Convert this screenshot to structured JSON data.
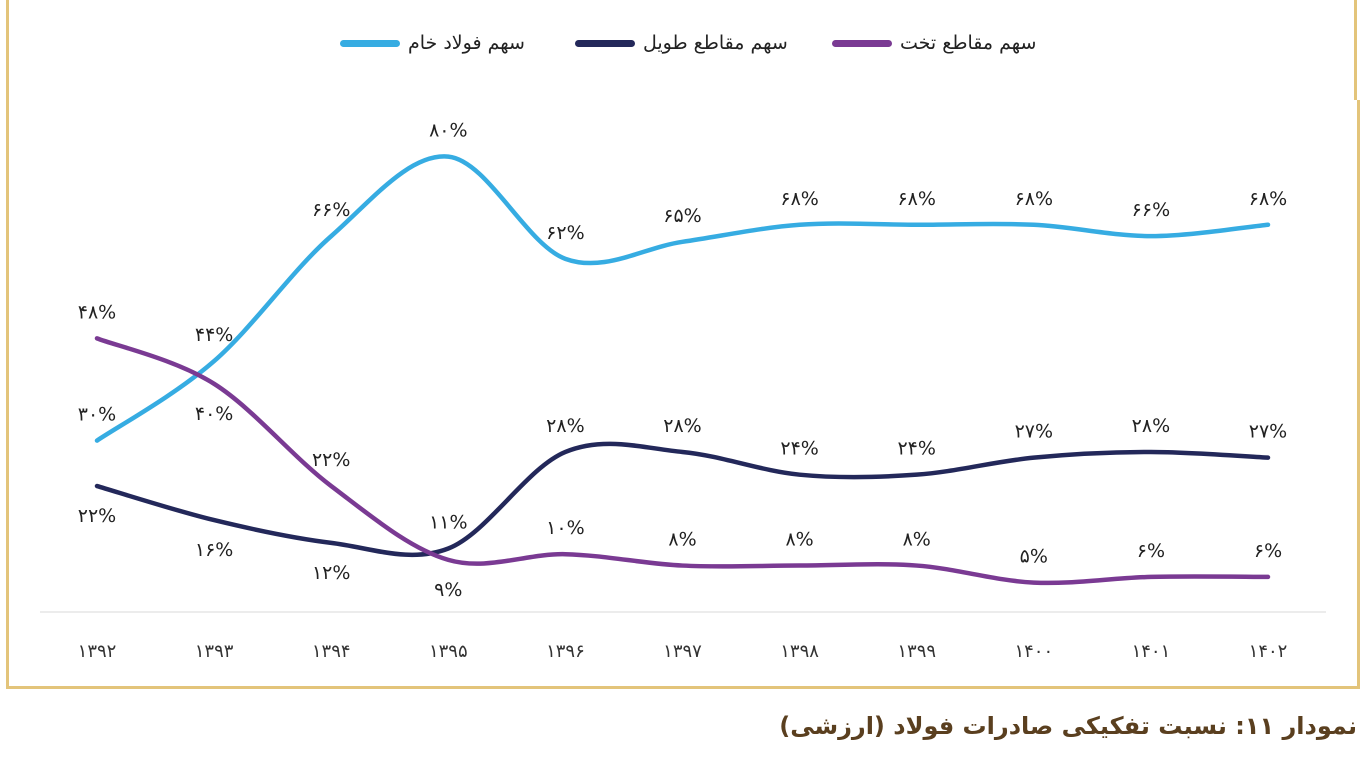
{
  "chart_data": {
    "type": "line",
    "title": "نمودار ۱۱: نسبت تفکیکی صادرات فولاد (ارزشی)",
    "categories": [
      "۱۳۹۲",
      "۱۳۹۳",
      "۱۳۹۴",
      "۱۳۹۵",
      "۱۳۹۶",
      "۱۳۹۷",
      "۱۳۹۸",
      "۱۳۹۹",
      "۱۴۰۰",
      "۱۴۰۱",
      "۱۴۰۲"
    ],
    "x": [
      1392,
      1393,
      1394,
      1395,
      1396,
      1397,
      1398,
      1399,
      1400,
      1401,
      1402
    ],
    "ylim": [
      0,
      100
    ],
    "grid": false,
    "legend_position": "top",
    "series": [
      {
        "name": "سهم فولاد خام",
        "color": "#36ace2",
        "values": [
          30,
          44,
          66,
          80,
          62,
          65,
          68,
          68,
          68,
          66,
          68
        ],
        "labels": [
          "۳۰%",
          "۴۴%",
          "۶۶%",
          "۸۰%",
          "۶۲%",
          "۶۵%",
          "۶۸%",
          "۶۸%",
          "۶۸%",
          "۶۶%",
          "۶۸%"
        ]
      },
      {
        "name": "سهم مقاطع طویل",
        "color": "#23285a",
        "values": [
          22,
          16,
          12,
          11,
          28,
          28,
          24,
          24,
          27,
          28,
          27
        ],
        "labels": [
          "۲۲%",
          "۱۶%",
          "۱۲%",
          "۱۱%",
          "۲۸%",
          "۲۸%",
          "۲۴%",
          "۲۴%",
          "۲۷%",
          "۲۸%",
          "۲۷%"
        ]
      },
      {
        "name": "سهم مقاطع تخت",
        "color": "#7a3a93",
        "values": [
          48,
          40,
          22,
          9,
          10,
          8,
          8,
          8,
          5,
          6,
          6
        ],
        "labels": [
          "۴۸%",
          "۴۰%",
          "۲۲%",
          "۹%",
          "۱۰%",
          "۸%",
          "۸%",
          "۸%",
          "۵%",
          "۶%",
          "۶%"
        ]
      }
    ]
  }
}
